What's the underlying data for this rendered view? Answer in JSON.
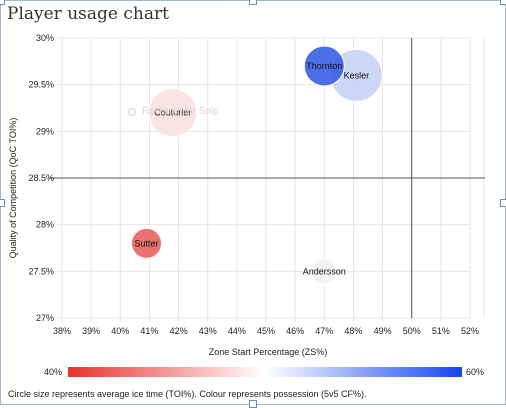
{
  "window": {
    "title": "Player usage chart",
    "overlay_label": "Rectangular Snip"
  },
  "chart_data": {
    "type": "scatter",
    "title": "Player usage chart",
    "xlabel": "Zone Start Percentage (ZS%)",
    "ylabel": "Quality of Competition (QoC TOI%)",
    "xlim": [
      38,
      52
    ],
    "ylim": [
      27,
      30
    ],
    "x_ticks": [
      "38%",
      "39%",
      "40%",
      "41%",
      "42%",
      "43%",
      "44%",
      "45%",
      "46%",
      "47%",
      "48%",
      "49%",
      "50%",
      "51%",
      "52%"
    ],
    "y_ticks": [
      "27%",
      "27.5%",
      "28%",
      "28.5%",
      "29%",
      "29.5%",
      "30%"
    ],
    "reference_lines": {
      "x": 50,
      "y": 28.5
    },
    "grid": true,
    "points": [
      {
        "label": "Thornton",
        "x": 47.0,
        "y": 29.7,
        "cf": 60,
        "color": "#3d63e8",
        "size": 1.0
      },
      {
        "label": "Kesler",
        "x": 48.1,
        "y": 29.6,
        "cf": 55,
        "color": "#c8d3f6",
        "size": 1.3
      },
      {
        "label": "Couturier",
        "x": 41.8,
        "y": 29.2,
        "cf": 48,
        "color": "#f9e2e2",
        "size": 1.2
      },
      {
        "label": "Sutter",
        "x": 40.9,
        "y": 27.8,
        "cf": 42,
        "color": "#e86666",
        "size": 0.75
      },
      {
        "label": "Andersson",
        "x": 47.0,
        "y": 27.5,
        "cf": 50,
        "color": "#f3f3f3",
        "size": 0.65
      }
    ],
    "color_scale": {
      "min_label": "40%",
      "max_label": "60%",
      "min_color": "#e8322c",
      "mid_color": "#ffffff",
      "max_color": "#1446f0"
    },
    "caption": "Circle size represents average ice time (TOI%). Colour represents possession (5v5 CF%)."
  }
}
